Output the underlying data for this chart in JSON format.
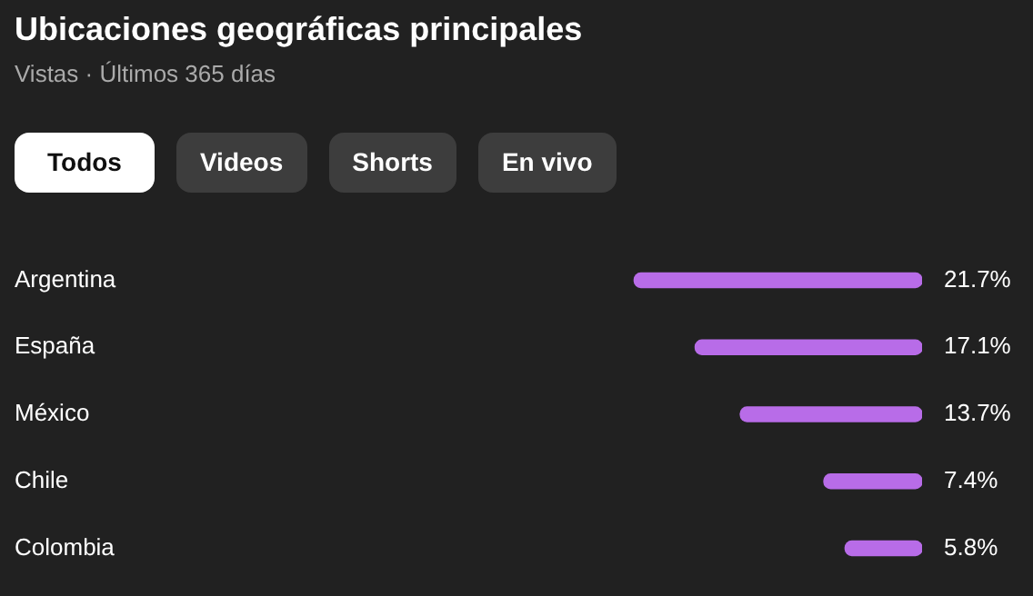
{
  "chart_data": {
    "type": "bar",
    "title": "Ubicaciones geográficas principales",
    "subtitle": "Vistas · Últimos 365 días",
    "annotations": [
      "Todos",
      "Videos",
      "Shorts",
      "En vivo"
    ],
    "orientation": "horizontal",
    "categories": [
      "Argentina",
      "España",
      "México",
      "Chile",
      "Colombia"
    ],
    "values": [
      21.7,
      17.1,
      13.7,
      7.4,
      5.8
    ],
    "value_labels": [
      "21.7%",
      "17.1%",
      "13.7%",
      "7.4%",
      "5.8%"
    ],
    "color": "#b86ce8",
    "tick_labels": "y",
    "legend": false
  }
}
